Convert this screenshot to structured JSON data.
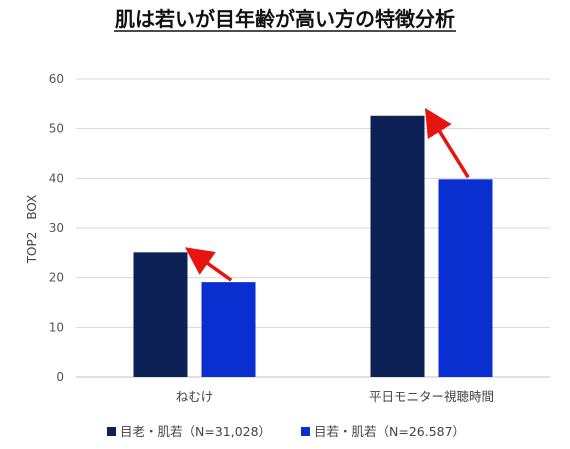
{
  "chart_data": {
    "type": "bar",
    "title": "肌は若いが目年齢が高い方の特徴分析",
    "ylabel": "TOP2　BOX",
    "xlabel": "",
    "ylim": [
      0,
      60
    ],
    "yticks": [
      0,
      10,
      20,
      30,
      40,
      50,
      60
    ],
    "categories": [
      "ねむけ",
      "平日モニター視聴時間"
    ],
    "series": [
      {
        "name": "目老・肌若（N=31,028）",
        "values": [
          25.1,
          52.6
        ],
        "color": "#0d2157"
      },
      {
        "name": "目若・肌若（N=26.587）",
        "values": [
          19.1,
          39.8
        ],
        "color": "#0a2fd1"
      }
    ],
    "grid": true,
    "legend_position": "bottom",
    "annotations": [
      {
        "type": "arrow",
        "category": 0,
        "from_series": 1,
        "to_series": 0,
        "color": "#e8140f"
      },
      {
        "type": "arrow",
        "category": 1,
        "from_series": 1,
        "to_series": 0,
        "color": "#e8140f"
      }
    ]
  }
}
